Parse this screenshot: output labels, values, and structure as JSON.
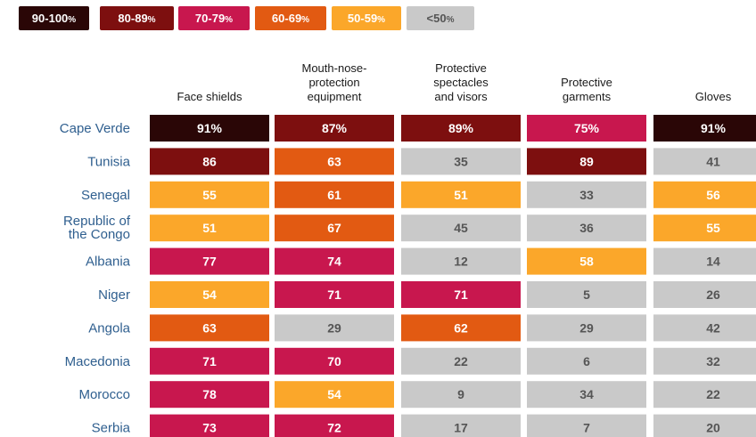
{
  "legend": [
    {
      "range": "90-100",
      "suffix": "%",
      "color": "#2a0606",
      "text_color": "#ffffff"
    },
    {
      "range": "80-89",
      "suffix": "%",
      "color": "#7d0f0f",
      "text_color": "#ffffff"
    },
    {
      "range": "70-79",
      "suffix": "%",
      "color": "#c8174e",
      "text_color": "#ffffff"
    },
    {
      "range": "60-69",
      "suffix": "%",
      "color": "#e25a12",
      "text_color": "#ffffff"
    },
    {
      "range": "50-59",
      "suffix": "%",
      "color": "#fba72a",
      "text_color": "#ffffff"
    },
    {
      "range": "<50",
      "suffix": "%",
      "color": "#c9c9c9",
      "text_color": "#555555"
    }
  ],
  "chart_data": {
    "type": "table",
    "columns": [
      [
        "Face shields"
      ],
      [
        "Mouth-nose-",
        "protection",
        "equipment"
      ],
      [
        "Protective",
        "spectacles",
        "and visors"
      ],
      [
        "Protective",
        "garments"
      ],
      [
        "Gloves"
      ]
    ],
    "rows": [
      {
        "label": [
          "Cape Verde"
        ],
        "values": [
          91,
          87,
          89,
          75,
          91
        ],
        "suffix": "%"
      },
      {
        "label": [
          "Tunisia"
        ],
        "values": [
          86,
          63,
          35,
          89,
          41
        ],
        "suffix": ""
      },
      {
        "label": [
          "Senegal"
        ],
        "values": [
          55,
          61,
          51,
          33,
          56
        ],
        "suffix": ""
      },
      {
        "label": [
          "Republic of",
          "the Congo"
        ],
        "values": [
          51,
          67,
          45,
          36,
          55
        ],
        "suffix": ""
      },
      {
        "label": [
          "Albania"
        ],
        "values": [
          77,
          74,
          12,
          58,
          14
        ],
        "suffix": ""
      },
      {
        "label": [
          "Niger"
        ],
        "values": [
          54,
          71,
          71,
          5,
          26
        ],
        "suffix": ""
      },
      {
        "label": [
          "Angola"
        ],
        "values": [
          63,
          29,
          62,
          29,
          42
        ],
        "suffix": ""
      },
      {
        "label": [
          "Macedonia"
        ],
        "values": [
          71,
          70,
          22,
          6,
          32
        ],
        "suffix": ""
      },
      {
        "label": [
          "Morocco"
        ],
        "values": [
          78,
          54,
          9,
          34,
          22
        ],
        "suffix": ""
      },
      {
        "label": [
          "Serbia"
        ],
        "values": [
          73,
          72,
          17,
          7,
          20
        ],
        "suffix": ""
      }
    ]
  }
}
